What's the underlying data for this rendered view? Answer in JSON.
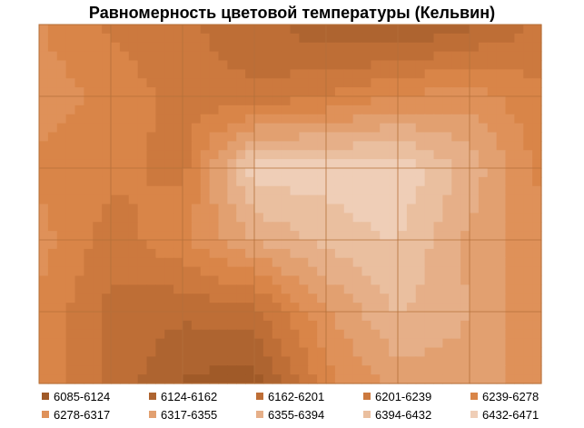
{
  "chart_data": {
    "type": "heatmap",
    "title": "Равномерность цветовой температуры (Кельвин)",
    "xlabel": "",
    "ylabel": "",
    "grid": true,
    "legend_position": "bottom",
    "grid_columns": 7,
    "grid_rows": 5,
    "values": [
      [
        6280,
        6230,
        6205,
        6180,
        6130,
        6115,
        6150,
        6210
      ],
      [
        6300,
        6265,
        6225,
        6205,
        6240,
        6280,
        6300,
        6245
      ],
      [
        6265,
        6250,
        6225,
        6460,
        6450,
        6465,
        6380,
        6265
      ],
      [
        6295,
        6220,
        6270,
        6355,
        6410,
        6435,
        6345,
        6295
      ],
      [
        6270,
        6190,
        6170,
        6185,
        6310,
        6400,
        6355,
        6275
      ],
      [
        6275,
        6190,
        6120,
        6100,
        6265,
        6330,
        6340,
        6290
      ]
    ],
    "bands": [
      {
        "label": "6085-6124",
        "min": 6085,
        "max": 6124,
        "color": "#A05A28"
      },
      {
        "label": "6124-6162",
        "min": 6124,
        "max": 6162,
        "color": "#AE6430"
      },
      {
        "label": "6162-6201",
        "min": 6162,
        "max": 6201,
        "color": "#BE6E36"
      },
      {
        "label": "6201-6239",
        "min": 6201,
        "max": 6239,
        "color": "#CC793E"
      },
      {
        "label": "6239-6278",
        "min": 6239,
        "max": 6278,
        "color": "#D98548"
      },
      {
        "label": "6278-6317",
        "min": 6278,
        "max": 6317,
        "color": "#DF9159"
      },
      {
        "label": "6317-6355",
        "min": 6317,
        "max": 6355,
        "color": "#E2A070"
      },
      {
        "label": "6355-6394",
        "min": 6355,
        "max": 6394,
        "color": "#E6AF88"
      },
      {
        "label": "6394-6432",
        "min": 6394,
        "max": 6432,
        "color": "#EABF9F"
      },
      {
        "label": "6432-6471",
        "min": 6432,
        "max": 6471,
        "color": "#EFCEB7"
      }
    ]
  }
}
